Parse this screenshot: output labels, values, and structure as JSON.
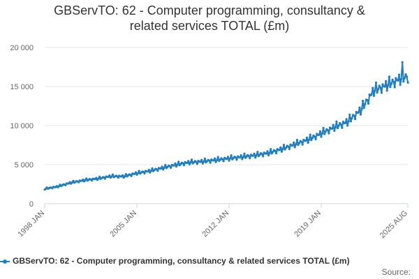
{
  "chart_data": {
    "type": "line",
    "title_line1": "GBServTO: 62 - Computer programming, consultancy &",
    "title_line2": "related services TOTAL (£m)",
    "xlabel": "",
    "ylabel": "",
    "ylim": [
      0,
      20000
    ],
    "y_ticks": [
      0,
      5000,
      10000,
      15000,
      20000
    ],
    "y_tick_labels": [
      "0",
      "5 000",
      "10 000",
      "15 000",
      "20 000"
    ],
    "x_range": [
      1998.0,
      2025.58
    ],
    "x_ticks": [
      1998.0,
      2005.0,
      2012.0,
      2019.0,
      2025.58
    ],
    "x_tick_labels": [
      "1998 JAN",
      "2005 JAN",
      "2012 JAN",
      "2019 JAN",
      "2025 AUG"
    ],
    "grid": true,
    "series": [
      {
        "name": "GBServTO: 62 - Computer programming, consultancy & related services TOTAL (£m)",
        "color": "#1f7ec2",
        "frequency": "monthly",
        "start": "1998 JAN",
        "end": "2025 AUG",
        "anchors": [
          [
            1998.0,
            1900
          ],
          [
            1999.0,
            2200
          ],
          [
            2000.0,
            2700
          ],
          [
            2001.0,
            3000
          ],
          [
            2002.0,
            3200
          ],
          [
            2003.0,
            3500
          ],
          [
            2004.0,
            3500
          ],
          [
            2005.0,
            3900
          ],
          [
            2006.0,
            4200
          ],
          [
            2007.0,
            4600
          ],
          [
            2008.0,
            5000
          ],
          [
            2009.0,
            5300
          ],
          [
            2010.0,
            5400
          ],
          [
            2011.0,
            5600
          ],
          [
            2012.0,
            5800
          ],
          [
            2013.0,
            6000
          ],
          [
            2014.0,
            6200
          ],
          [
            2015.0,
            6500
          ],
          [
            2016.0,
            7000
          ],
          [
            2017.0,
            7600
          ],
          [
            2018.0,
            8200
          ],
          [
            2019.0,
            9000
          ],
          [
            2020.0,
            9800
          ],
          [
            2021.0,
            10500
          ],
          [
            2022.0,
            12000
          ],
          [
            2023.0,
            14500
          ],
          [
            2024.0,
            15200
          ],
          [
            2025.0,
            16000
          ],
          [
            2025.58,
            16300
          ]
        ],
        "seasonal_amplitude_pct": 6,
        "last_value": 15500,
        "peak": [
          2025.2,
          18100
        ]
      }
    ]
  },
  "legend": {
    "label": "GBServTO: 62 - Computer programming, consultancy & related services TOTAL (£m)"
  },
  "source_label": "Source:"
}
